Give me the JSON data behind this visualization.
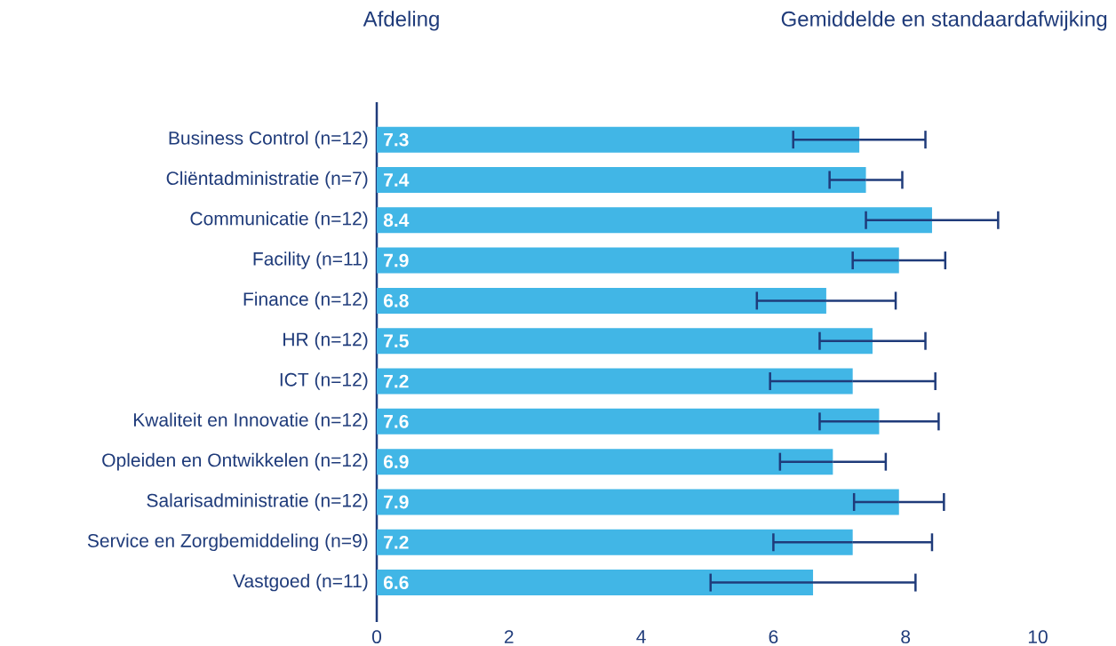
{
  "chart_data": {
    "type": "bar",
    "orientation": "horizontal",
    "title": "Gemiddelde en standaardafwijking",
    "ylabel": "Afdeling",
    "categories": [
      "Business Control (n=12)",
      "Cliëntadministratie (n=7)",
      "Communicatie (n=12)",
      "Facility (n=11)",
      "Finance (n=12)",
      "HR (n=12)",
      "ICT (n=12)",
      "Kwaliteit en Innovatie (n=12)",
      "Opleiden en Ontwikkelen (n=12)",
      "Salarisadministratie (n=12)",
      "Service en Zorgbemiddeling (n=9)",
      "Vastgoed (n=11)"
    ],
    "values": [
      7.3,
      7.4,
      8.4,
      7.9,
      6.8,
      7.5,
      7.2,
      7.6,
      6.9,
      7.9,
      7.2,
      6.6
    ],
    "errors": [
      1.0,
      0.55,
      1.0,
      0.7,
      1.05,
      0.8,
      1.25,
      0.9,
      0.8,
      0.68,
      1.2,
      1.55
    ],
    "color": "#41b6e6",
    "data_labels": true,
    "grid": false,
    "xlim": [
      0,
      10
    ],
    "xticks": [
      0,
      2,
      4,
      6,
      8,
      10
    ]
  }
}
